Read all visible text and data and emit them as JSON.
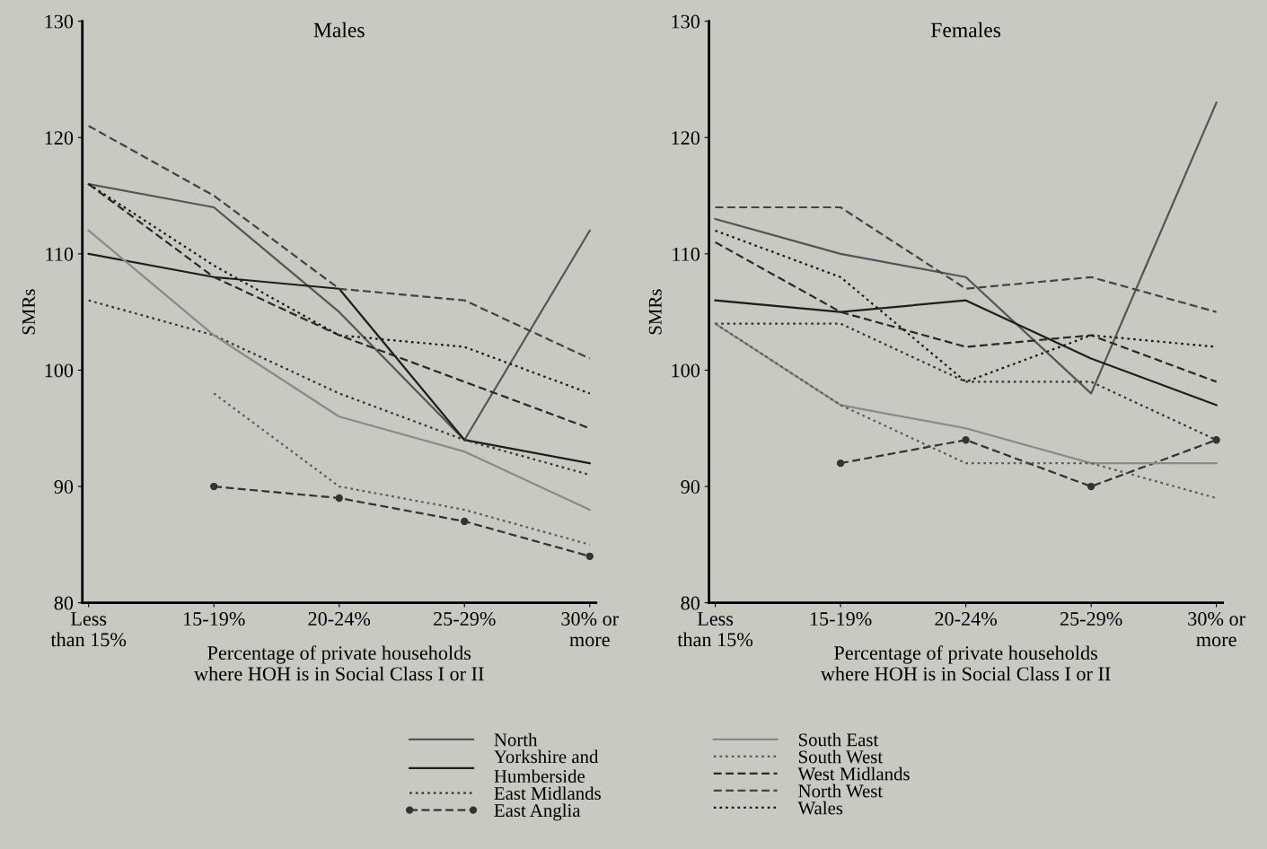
{
  "chart_data": [
    {
      "type": "line",
      "title": "Males",
      "xlabel": "Percentage of private households\nwhere HOH is in Social Class I or II",
      "ylabel": "SMRs",
      "categories": [
        "Less\nthan 15%",
        "15-19%",
        "20-24%",
        "25-29%",
        "30% or\nmore"
      ],
      "ylim": [
        80,
        130
      ],
      "yticks": [
        80,
        90,
        100,
        110,
        120,
        130
      ],
      "grid": false,
      "legend": "bottom",
      "series": [
        {
          "name": "North",
          "color": "#555555",
          "line_style": "solid",
          "values": [
            116,
            114,
            105,
            94,
            112
          ]
        },
        {
          "name": "Yorkshire and\nHumberside",
          "color": "#1e1e1e",
          "line_style": "solid",
          "values": [
            110,
            108,
            107,
            94,
            92
          ]
        },
        {
          "name": "East Midlands",
          "color": "#333333",
          "line_style": "dotted",
          "values": [
            106,
            103,
            98,
            94,
            91
          ]
        },
        {
          "name": "East Anglia",
          "color": "#333333",
          "line_style": "dashed",
          "marker": "circle",
          "values": [
            null,
            90,
            89,
            87,
            84
          ]
        },
        {
          "name": "South East",
          "color": "#8a8a86",
          "line_style": "solid",
          "values": [
            112,
            103,
            96,
            93,
            88
          ]
        },
        {
          "name": "South West",
          "color": "#5a5a5a",
          "line_style": "dotted",
          "values": [
            null,
            98,
            90,
            88,
            85
          ]
        },
        {
          "name": "West Midlands",
          "color": "#2a2a2a",
          "line_style": "dashed",
          "values": [
            116,
            108,
            103,
            99,
            95
          ]
        },
        {
          "name": "North West",
          "color": "#444444",
          "line_style": "dashed",
          "values": [
            121,
            115,
            107,
            106,
            101
          ]
        },
        {
          "name": "Wales",
          "color": "#1a1a1a",
          "line_style": "dotted",
          "values": [
            116,
            109,
            103,
            102,
            98
          ]
        }
      ]
    },
    {
      "type": "line",
      "title": "Females",
      "xlabel": "Percentage of private households\nwhere HOH is in Social Class I or II",
      "ylabel": "SMRs",
      "categories": [
        "Less\nthan 15%",
        "15-19%",
        "20-24%",
        "25-29%",
        "30% or\nmore"
      ],
      "ylim": [
        80,
        130
      ],
      "yticks": [
        80,
        90,
        100,
        110,
        120,
        130
      ],
      "grid": false,
      "series": [
        {
          "color": "#555555",
          "line_style": "solid",
          "values": [
            113,
            110,
            108,
            98,
            123
          ]
        },
        {
          "color": "#1e1e1e",
          "line_style": "solid",
          "values": [
            106,
            105,
            106,
            101,
            97
          ]
        },
        {
          "color": "#333333",
          "line_style": "dotted",
          "values": [
            104,
            104,
            99,
            99,
            94
          ]
        },
        {
          "color": "#333333",
          "line_style": "dashed",
          "marker": "circle",
          "values": [
            null,
            92,
            94,
            90,
            94
          ]
        },
        {
          "color": "#8a8a86",
          "line_style": "solid",
          "values": [
            104,
            97,
            95,
            92,
            92
          ]
        },
        {
          "color": "#5a5a5a",
          "line_style": "dotted",
          "values": [
            104,
            97,
            92,
            92,
            89
          ]
        },
        {
          "color": "#2a2a2a",
          "line_style": "dashed",
          "values": [
            111,
            105,
            102,
            103,
            99
          ]
        },
        {
          "color": "#444444",
          "line_style": "dashed",
          "values": [
            114,
            114,
            107,
            108,
            105
          ]
        },
        {
          "color": "#1a1a1a",
          "line_style": "dotted",
          "values": [
            112,
            108,
            99,
            103,
            102
          ]
        }
      ]
    }
  ]
}
